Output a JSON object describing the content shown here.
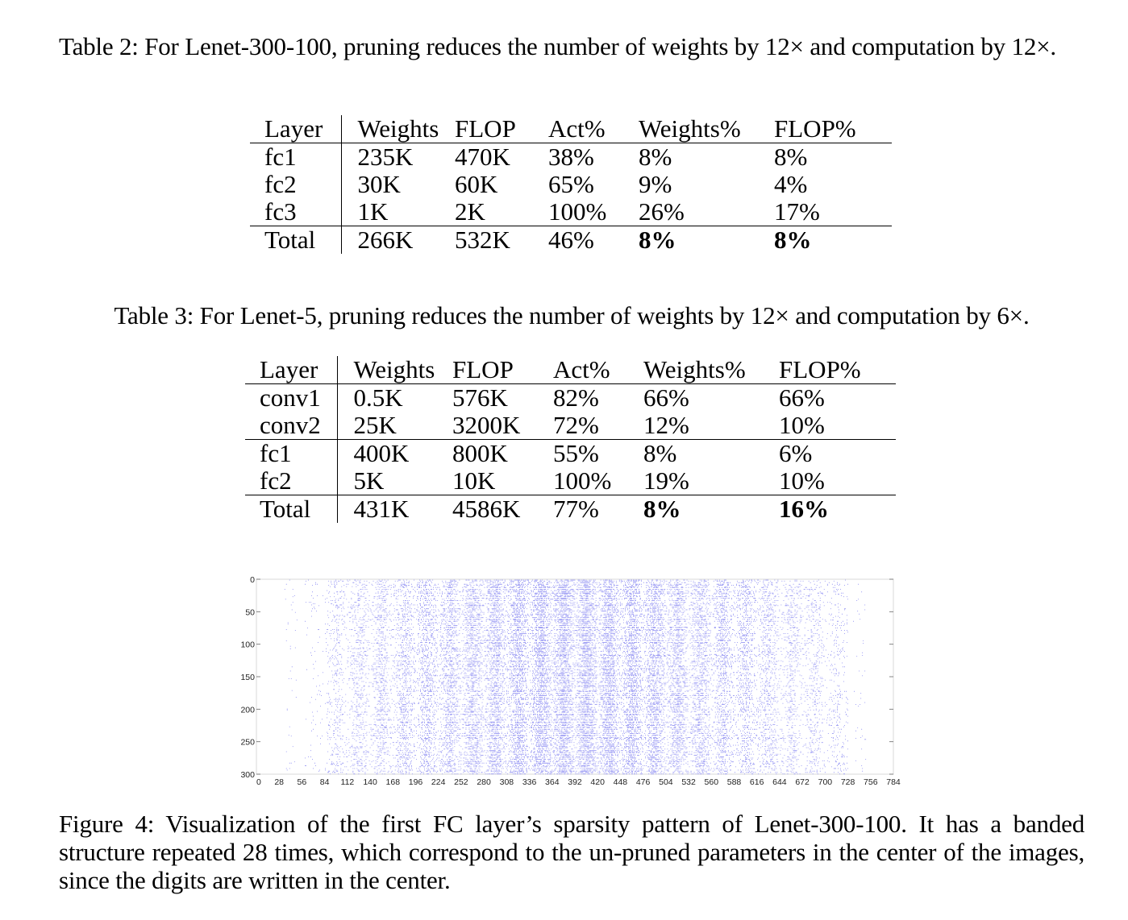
{
  "table2": {
    "caption": "Table 2: For Lenet-300-100, pruning reduces the number of weights by 12× and computation by 12×.",
    "headers": [
      "Layer",
      "Weights",
      "FLOP",
      "Act%",
      "Weights%",
      "FLOP%"
    ],
    "rows": [
      [
        "fc1",
        "235K",
        "470K",
        "38%",
        "8%",
        "8%"
      ],
      [
        "fc2",
        "30K",
        "60K",
        "65%",
        "9%",
        "4%"
      ],
      [
        "fc3",
        "1K",
        "2K",
        "100%",
        "26%",
        "17%"
      ]
    ],
    "total": [
      "Total",
      "266K",
      "532K",
      "46%",
      "8%",
      "8%"
    ]
  },
  "table3": {
    "caption": "Table 3: For Lenet-5, pruning reduces the number of weights by 12× and computation by 6×.",
    "headers": [
      "Layer",
      "Weights",
      "FLOP",
      "Act%",
      "Weights%",
      "FLOP%"
    ],
    "rows": [
      [
        "conv1",
        "0.5K",
        "576K",
        "82%",
        "66%",
        "66%"
      ],
      [
        "conv2",
        "25K",
        "3200K",
        "72%",
        "12%",
        "10%"
      ],
      [
        "fc1",
        "400K",
        "800K",
        "55%",
        "8%",
        "6%"
      ],
      [
        "fc2",
        "5K",
        "10K",
        "100%",
        "19%",
        "10%"
      ]
    ],
    "total": [
      "Total",
      "431K",
      "4586K",
      "77%",
      "8%",
      "16%"
    ]
  },
  "figure4": {
    "caption": "Figure 4: Visualization of the first FC layer’s sparsity pattern of Lenet-300-100. It has a banded structure repeated 28 times, which correspond to the un-pruned parameters in the center of the images, since the digits are written in the center.",
    "dot_color": "#8c8cf2",
    "chart_data": {
      "type": "heatmap",
      "description_source": "sparsity pattern (spy plot)",
      "x_ticks": [
        "0",
        "28",
        "56",
        "84",
        "112",
        "140",
        "168",
        "196",
        "224",
        "252",
        "280",
        "308",
        "336",
        "364",
        "392",
        "420",
        "448",
        "476",
        "504",
        "532",
        "560",
        "588",
        "616",
        "644",
        "672",
        "700",
        "728",
        "756",
        "784"
      ],
      "y_ticks": [
        "0",
        "50",
        "100",
        "150",
        "200",
        "250",
        "300"
      ],
      "xlim": [
        0,
        784
      ],
      "ylim": [
        0,
        300
      ],
      "band_period": 28,
      "band_repeats": 28
    }
  }
}
